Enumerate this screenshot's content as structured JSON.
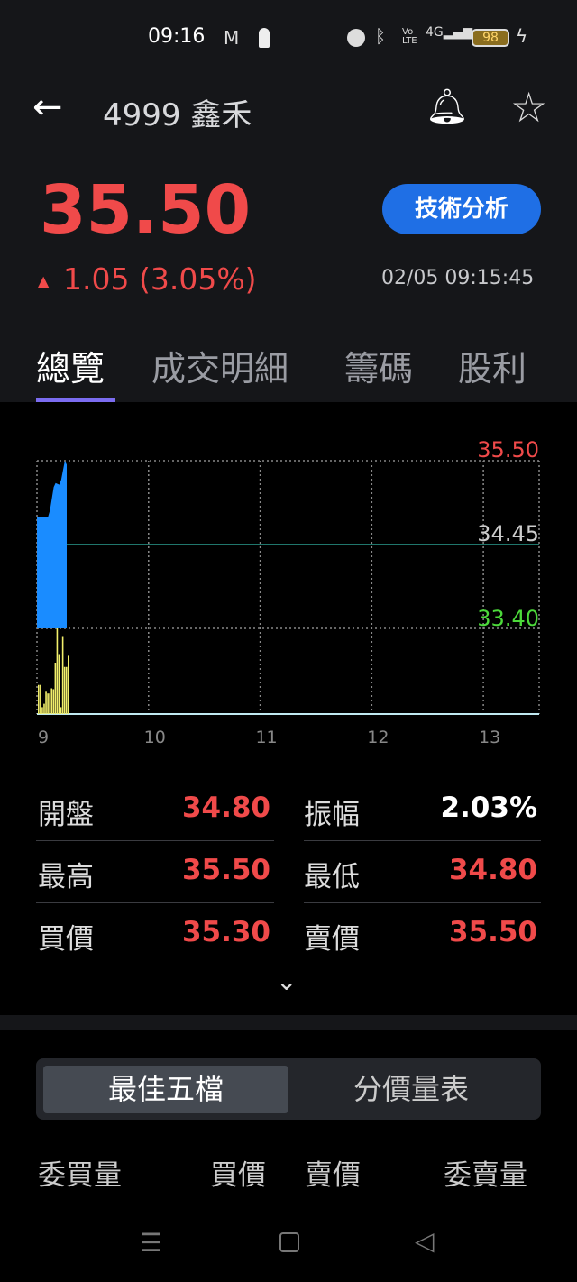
{
  "status_bar": {
    "time": "09:16",
    "battery": "98",
    "icons": [
      "gmail-icon",
      "keyhole-icon",
      "alarm-icon",
      "bluetooth-icon",
      "volte-icon",
      "signal-4g-icon",
      "battery-icon",
      "charging-icon"
    ]
  },
  "header": {
    "title": "4999 鑫禾",
    "back_icon": "arrow-left-icon",
    "bell_icon": "bell-icon",
    "star_icon": "star-icon"
  },
  "quote": {
    "price": "35.50",
    "change": "1.05 (3.05%)",
    "direction": "up",
    "timestamp": "02/05 09:15:45",
    "tech_button": "技術分析"
  },
  "tabs": [
    {
      "label": "總覽",
      "active": true
    },
    {
      "label": "成交明細"
    },
    {
      "label": "籌碼"
    },
    {
      "label": "股利"
    }
  ],
  "colors": {
    "up": "#f04a4a",
    "down": "#4cd93a",
    "accent": "#1f6fe5",
    "area": "#1a8cff",
    "volume": "#f2ef6b",
    "tab_indicator": "#7b6cf0"
  },
  "chart_data": {
    "type": "area",
    "x_ticks": [
      "9",
      "10",
      "11",
      "12",
      "13"
    ],
    "y_labels": {
      "high": "35.50",
      "ref": "34.45",
      "low": "33.40"
    },
    "ylim": [
      33.4,
      35.5
    ],
    "xlim": [
      "09:00",
      "13:30"
    ],
    "price": [
      [
        "09:00",
        34.8
      ],
      [
        "09:06",
        34.8
      ],
      [
        "09:07",
        34.88
      ],
      [
        "09:09",
        35.17
      ],
      [
        "09:10",
        35.22
      ],
      [
        "09:12",
        35.2
      ],
      [
        "09:13",
        35.26
      ],
      [
        "09:15",
        35.5
      ],
      [
        "09:16",
        35.45
      ]
    ],
    "volume_relative": [
      [
        "09:00",
        0.34
      ],
      [
        "09:01",
        0.34
      ],
      [
        "09:02",
        0.08
      ],
      [
        "09:03",
        0.12
      ],
      [
        "09:04",
        0.26
      ],
      [
        "09:05",
        0.24
      ],
      [
        "09:06",
        0.24
      ],
      [
        "09:07",
        0.3
      ],
      [
        "09:08",
        0.29
      ],
      [
        "09:09",
        0.6
      ],
      [
        "09:10",
        1.0
      ],
      [
        "09:11",
        0.7
      ],
      [
        "09:12",
        0.08
      ],
      [
        "09:13",
        0.9
      ],
      [
        "09:14",
        0.55
      ],
      [
        "09:15",
        0.55
      ],
      [
        "09:16",
        0.68
      ]
    ]
  },
  "stats": [
    {
      "label": "開盤",
      "value": "34.80",
      "color": "up"
    },
    {
      "label": "振幅",
      "value": "2.03%",
      "color": "neutral"
    },
    {
      "label": "最高",
      "value": "35.50",
      "color": "up"
    },
    {
      "label": "最低",
      "value": "34.80",
      "color": "up"
    },
    {
      "label": "買價",
      "value": "35.30",
      "color": "up"
    },
    {
      "label": "賣價",
      "value": "35.50",
      "color": "up"
    }
  ],
  "book": {
    "toggle": [
      {
        "label": "最佳五檔",
        "active": true
      },
      {
        "label": "分價量表"
      }
    ],
    "headers": [
      "委買量",
      "買價",
      "賣價",
      "委賣量"
    ]
  }
}
